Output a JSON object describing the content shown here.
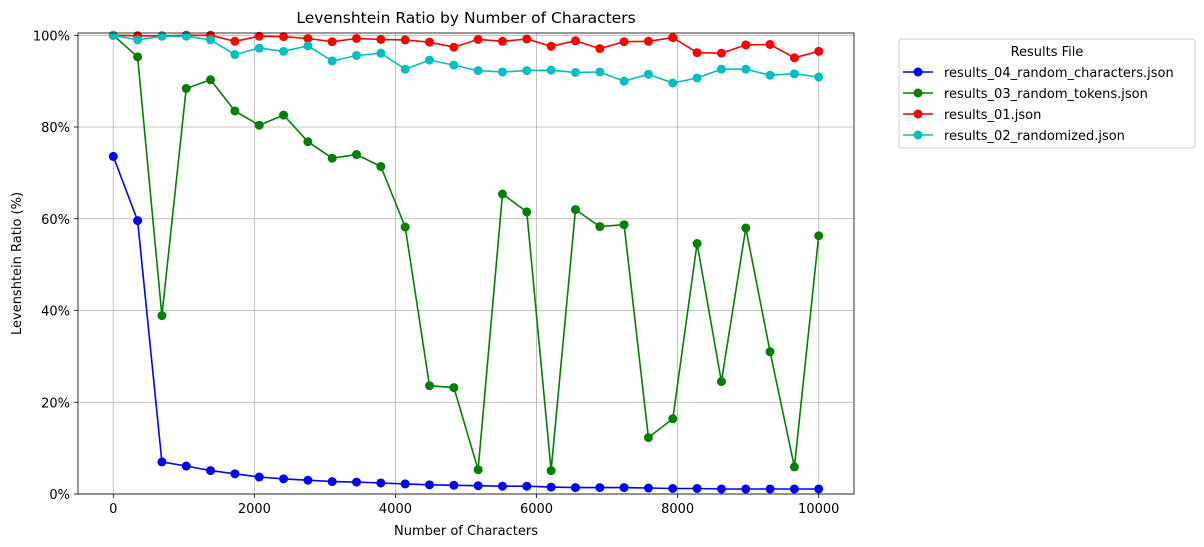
{
  "chart_data": {
    "type": "line",
    "title": "Levenshtein Ratio by Number of Characters",
    "xlabel": "Number of Characters",
    "ylabel": "Levenshtein Ratio (%)",
    "xlim": [
      -500,
      10500
    ],
    "ylim": [
      0,
      100.5
    ],
    "x_ticks": [
      0,
      2000,
      4000,
      6000,
      8000,
      10000
    ],
    "x_tick_labels": [
      "0",
      "2000",
      "4000",
      "6000",
      "8000",
      "10000"
    ],
    "y_ticks": [
      0,
      20,
      40,
      60,
      80,
      100
    ],
    "y_tick_labels": [
      "0%",
      "20%",
      "40%",
      "60%",
      "80%",
      "100%"
    ],
    "grid": true,
    "legend": {
      "title": "Results File",
      "placement": "outside upper right"
    },
    "x": [
      0,
      345,
      690,
      1034,
      1379,
      1724,
      2069,
      2414,
      2759,
      3103,
      3448,
      3793,
      4138,
      4483,
      4828,
      5172,
      5517,
      5862,
      6207,
      6552,
      6897,
      7241,
      7586,
      7931,
      8276,
      8621,
      8966,
      9310,
      9655,
      10000
    ],
    "series": [
      {
        "name": "results_04_random_characters.json",
        "color": "#0000ff",
        "values": [
          73.6,
          59.6,
          7.0,
          6.1,
          5.1,
          4.4,
          3.7,
          3.3,
          3.0,
          2.7,
          2.6,
          2.4,
          2.2,
          2.0,
          1.9,
          1.8,
          1.7,
          1.7,
          1.5,
          1.4,
          1.4,
          1.4,
          1.3,
          1.2,
          1.2,
          1.1,
          1.1,
          1.1,
          1.1,
          1.1
        ]
      },
      {
        "name": "results_03_random_tokens.json",
        "color": "#008000",
        "values": [
          100.0,
          95.3,
          38.9,
          88.4,
          90.3,
          83.5,
          80.4,
          82.6,
          76.8,
          73.2,
          74.0,
          71.4,
          58.2,
          23.6,
          23.2,
          5.3,
          65.4,
          61.5,
          5.1,
          62.0,
          58.3,
          58.7,
          12.3,
          16.4,
          54.6,
          24.5,
          58.0,
          31.0,
          5.9,
          56.3
        ]
      },
      {
        "name": "results_01.json",
        "color": "#ff0000",
        "values": [
          100.0,
          99.9,
          99.9,
          100.0,
          100.0,
          98.7,
          99.8,
          99.7,
          99.3,
          98.6,
          99.3,
          99.1,
          99.0,
          98.5,
          97.4,
          99.1,
          98.7,
          99.2,
          97.6,
          98.8,
          97.1,
          98.6,
          98.7,
          99.5,
          96.2,
          96.1,
          97.9,
          98.0,
          95.1,
          96.5
        ]
      },
      {
        "name": "results_02_randomized.json",
        "color": "#00bfbf",
        "values": [
          100.0,
          99.0,
          99.8,
          99.8,
          99.0,
          95.8,
          97.2,
          96.5,
          97.7,
          94.4,
          95.6,
          96.1,
          92.6,
          94.6,
          93.5,
          92.3,
          92.0,
          92.3,
          92.4,
          91.9,
          92.0,
          90.0,
          91.5,
          89.6,
          90.7,
          92.6,
          92.6,
          91.3,
          91.6,
          90.9
        ]
      }
    ]
  }
}
